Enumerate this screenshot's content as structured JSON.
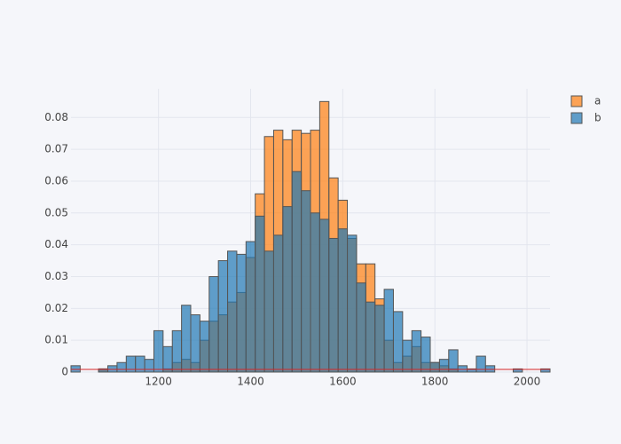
{
  "chart_data": {
    "type": "histogram",
    "barmode": "overlay",
    "bins": [
      1010,
      1030,
      1050,
      1070,
      1090,
      1110,
      1130,
      1150,
      1170,
      1190,
      1210,
      1230,
      1250,
      1270,
      1290,
      1310,
      1330,
      1350,
      1370,
      1390,
      1410,
      1430,
      1450,
      1470,
      1490,
      1510,
      1530,
      1550,
      1570,
      1590,
      1610,
      1630,
      1650,
      1670,
      1690,
      1710,
      1730,
      1750,
      1770,
      1790,
      1810,
      1830,
      1850,
      1870,
      1890,
      1910,
      1930,
      1950,
      1970,
      1990,
      2010,
      2030,
      2050
    ],
    "series": [
      {
        "name": "a",
        "color": "#ff7f0e",
        "values": [
          0,
          0,
          0,
          0.001,
          0,
          0,
          0,
          0,
          0,
          0,
          0.001,
          0.003,
          0.004,
          0.003,
          0.01,
          0.016,
          0.018,
          0.022,
          0.025,
          0.036,
          0.056,
          0.074,
          0.076,
          0.073,
          0.076,
          0.075,
          0.076,
          0.085,
          0.061,
          0.054,
          0.042,
          0.034,
          0.034,
          0.023,
          0.01,
          0.003,
          0.005,
          0.008,
          0.003,
          0.003,
          0.002,
          0.001,
          0,
          0,
          0,
          0,
          0,
          0,
          0,
          0,
          0,
          0
        ]
      },
      {
        "name": "b",
        "color": "#1f77b4",
        "values": [
          0.002,
          0,
          0,
          0.001,
          0.002,
          0.003,
          0.005,
          0.005,
          0.004,
          0.013,
          0.008,
          0.013,
          0.021,
          0.018,
          0.016,
          0.03,
          0.035,
          0.038,
          0.037,
          0.041,
          0.049,
          0.038,
          0.043,
          0.052,
          0.063,
          0.057,
          0.05,
          0.048,
          0.042,
          0.045,
          0.043,
          0.028,
          0.022,
          0.021,
          0.026,
          0.019,
          0.01,
          0.013,
          0.011,
          0.003,
          0.004,
          0.007,
          0.002,
          0.001,
          0.005,
          0.002,
          0,
          0,
          0.001,
          0,
          0,
          0.001
        ]
      }
    ],
    "xlim": [
      1010,
      2050
    ],
    "xticks": [
      1200,
      1400,
      1600,
      1800,
      2000
    ],
    "ylim": [
      0,
      0.089
    ],
    "yticks": [
      0,
      0.01,
      0.02,
      0.03,
      0.04,
      0.05,
      0.06,
      0.07,
      0.08
    ],
    "grid": true,
    "legend": "top-right"
  }
}
